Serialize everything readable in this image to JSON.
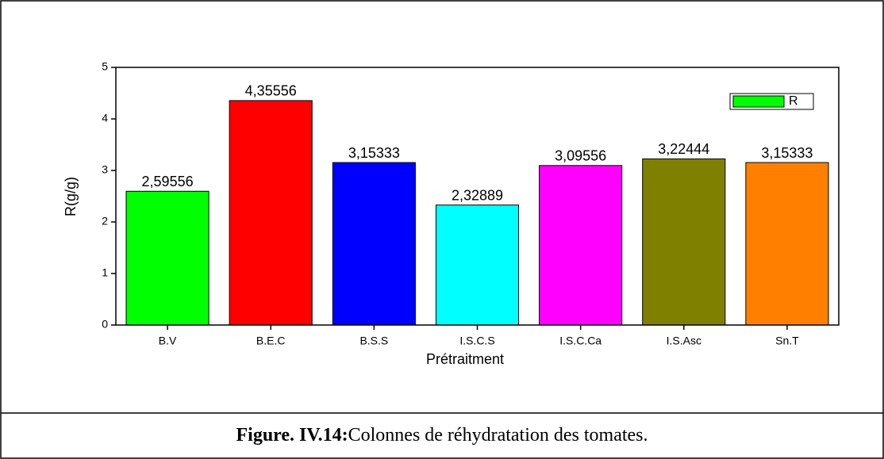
{
  "chart_data": {
    "type": "bar",
    "categories": [
      "B.V",
      "B.E.C",
      "B.S.S",
      "I.S.C.S",
      "I.S.C.Ca",
      "I.S.Asc",
      "Sn.T"
    ],
    "series": [
      {
        "name": "R",
        "color": "#00ff00",
        "values": [
          2.59556,
          4.35556,
          3.15333,
          2.32889,
          3.09556,
          3.22444,
          3.15333
        ],
        "value_labels": [
          "2,59556",
          "4,35556",
          "3,15333",
          "2,32889",
          "3,09556",
          "3,22444",
          "3,15333"
        ],
        "colors": [
          "#00ff00",
          "#ff0000",
          "#0000ff",
          "#00ffff",
          "#ff00ff",
          "#808000",
          "#ff8000"
        ]
      }
    ],
    "xlabel": "Prétraitment",
    "ylabel": "R(g/g)",
    "ylim": [
      0,
      5
    ],
    "yticks": [
      0,
      1,
      2,
      3,
      4,
      5
    ],
    "legend": "upper right"
  },
  "caption": {
    "label": "Figure. IV.14:",
    "text": "Colonnes de réhydratation des tomates."
  }
}
